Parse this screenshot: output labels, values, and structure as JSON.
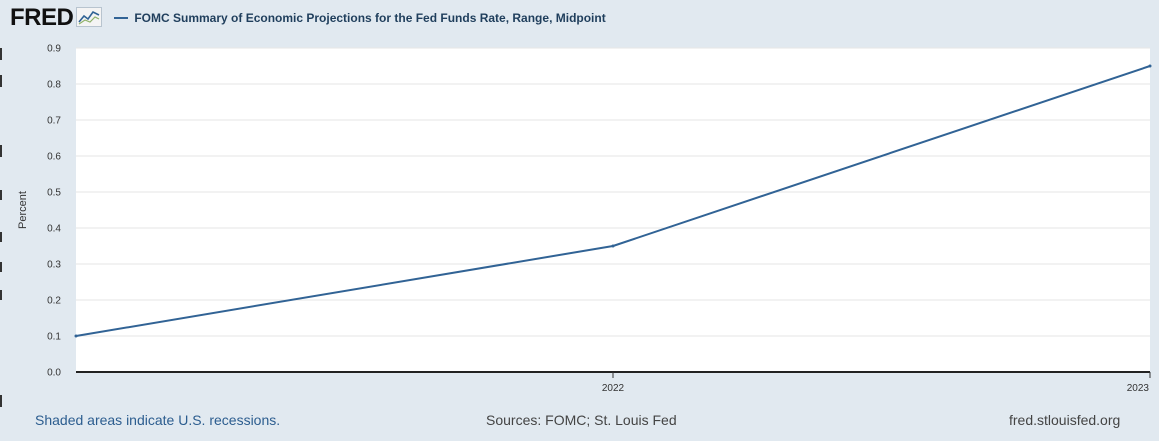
{
  "header": {
    "logo_text": "FRED",
    "logo_icon": "fred-graph-icon",
    "series_title": "FOMC Summary of Economic Projections for the Fed Funds Rate, Range, Midpoint"
  },
  "colors": {
    "background": "#e1e9f0",
    "plot_background": "#ffffff",
    "series_line": "#316395",
    "gridline": "#e6e6e6",
    "footer_link": "#2c5d8f"
  },
  "chart_data": {
    "type": "line",
    "title": "FOMC Summary of Economic Projections for the Fed Funds Rate, Range, Midpoint",
    "xlabel": "",
    "ylabel": "Percent",
    "x": [
      2021,
      2022,
      2023
    ],
    "x_tick_labels": [
      {
        "value": 2022,
        "label": "2022"
      },
      {
        "value": 2023,
        "label": "2023"
      }
    ],
    "xlim": [
      2021,
      2023
    ],
    "ylim": [
      0,
      0.9
    ],
    "y_ticks": [
      "0.0",
      "0.1",
      "0.2",
      "0.3",
      "0.4",
      "0.5",
      "0.6",
      "0.7",
      "0.8",
      "0.9"
    ],
    "grid": true,
    "series": [
      {
        "values": [
          0.1,
          0.35,
          0.85
        ],
        "color": "#316395"
      }
    ]
  },
  "footer": {
    "recessions_note": "Shaded areas indicate U.S. recessions.",
    "sources": "Sources: FOMC; St. Louis Fed",
    "site": "fred.stlouisfed.org"
  }
}
